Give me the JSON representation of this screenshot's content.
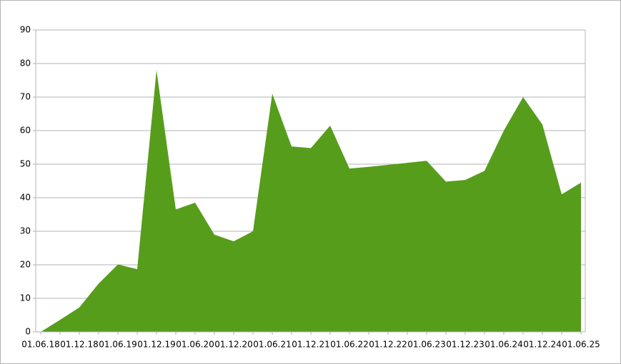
{
  "chart_data": {
    "type": "area",
    "categories": [
      "01.06.18",
      null,
      "01.12.18",
      null,
      "01.06.19",
      null,
      "01.12.19",
      null,
      "01.06.20",
      null,
      "01.12.20",
      null,
      "01.06.21",
      null,
      "01.12.21",
      null,
      "01.06.22",
      null,
      "01.12.22",
      null,
      "01.06.23",
      null,
      "01.12.23",
      null,
      "01.06.24",
      null,
      "01.12.24",
      null,
      "01.06.25"
    ],
    "values": [
      0,
      3.6,
      7.3,
      14.4,
      20.1,
      18.7,
      78,
      36.5,
      38.5,
      29,
      27,
      30,
      71,
      55.3,
      54.8,
      61.5,
      48.7,
      49.2,
      49.8,
      50.4,
      51,
      44.8,
      45.3,
      48,
      60,
      70,
      61.8,
      41,
      44.5
    ],
    "color": "#579d1c",
    "ylim": [
      0,
      90
    ],
    "yticks": [
      0,
      10,
      20,
      30,
      40,
      50,
      60,
      70,
      80,
      90
    ],
    "grid": true
  }
}
